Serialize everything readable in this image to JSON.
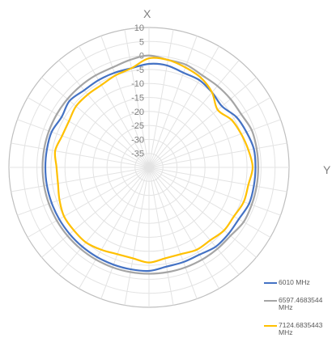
{
  "chart_data": {
    "type": "polar-line",
    "title": "",
    "angle_labels": {
      "top": "X",
      "right": "Y"
    },
    "radial_ticks": [
      "10",
      "5",
      "0",
      "-5",
      "-10",
      "-15",
      "-20",
      "-25",
      "-30",
      "-35"
    ],
    "rlim": [
      -40,
      10
    ],
    "angular_gridlines_deg": 10,
    "grid": true,
    "legend": "bottom-right",
    "series": [
      {
        "name": "6010 MHz",
        "color": "#4472c4",
        "angles_deg": [
          0,
          10,
          20,
          30,
          40,
          50,
          60,
          70,
          80,
          90,
          100,
          110,
          120,
          130,
          140,
          150,
          160,
          170,
          180,
          190,
          200,
          210,
          220,
          230,
          240,
          250,
          260,
          270,
          280,
          290,
          300,
          310,
          320,
          330,
          340,
          350
        ],
        "values": [
          -3,
          -3,
          -4,
          -4,
          -5,
          -6,
          -4,
          -3,
          -2,
          -2,
          -2,
          -2,
          -3,
          -3,
          -3,
          -4,
          -4,
          -4,
          -3,
          -3,
          -3,
          -3,
          -3,
          -3,
          -3,
          -3,
          -3,
          -3,
          -3,
          -3,
          -4,
          -3,
          -4,
          -4,
          -4,
          -4
        ]
      },
      {
        "name": "6597.4683544 MHz",
        "color": "#a5a5a5",
        "angles_deg": [
          0,
          10,
          20,
          30,
          40,
          50,
          60,
          70,
          80,
          90,
          100,
          110,
          120,
          130,
          140,
          150,
          160,
          170,
          180,
          190,
          200,
          210,
          220,
          230,
          240,
          250,
          260,
          270,
          280,
          290,
          300,
          310,
          320,
          330,
          340,
          350
        ],
        "values": [
          0,
          -1,
          -1,
          -2,
          -2,
          -2,
          -2,
          -1,
          -1,
          -1,
          -1,
          -1,
          -1,
          -2,
          -2,
          -2,
          -2,
          -2,
          -2,
          -2,
          -2,
          -2,
          -2,
          -2,
          -2,
          -2,
          -2,
          -2,
          -2,
          -2,
          -2,
          -2,
          -2,
          -2,
          -2,
          -1
        ]
      },
      {
        "name": "7124.6835443 MHz",
        "color": "#ffc000",
        "angles_deg": [
          0,
          10,
          20,
          30,
          40,
          50,
          60,
          70,
          80,
          90,
          100,
          110,
          120,
          130,
          140,
          150,
          160,
          170,
          180,
          190,
          200,
          210,
          220,
          230,
          240,
          250,
          260,
          270,
          280,
          290,
          300,
          310,
          320,
          330,
          340,
          350
        ],
        "values": [
          -1,
          -1,
          -2,
          -3,
          -5,
          -8,
          -6,
          -5,
          -4,
          -3,
          -4,
          -4,
          -5,
          -5,
          -6,
          -6,
          -7,
          -7,
          -6,
          -7,
          -7,
          -6,
          -5,
          -5,
          -5,
          -6,
          -7,
          -7,
          -6,
          -7,
          -7,
          -6,
          -6,
          -6,
          -5,
          -4
        ]
      }
    ]
  }
}
